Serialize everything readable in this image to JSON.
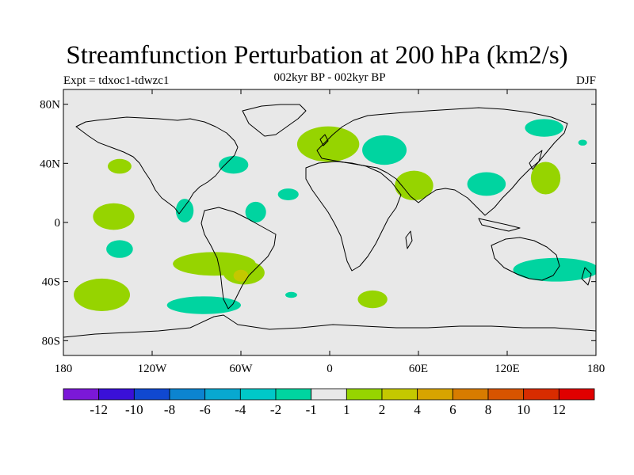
{
  "chart_data": {
    "type": "heatmap",
    "title": "Streamfunction Perturbation at 200 hPa (km2/s)",
    "subtitle_left": "Expt = tdxoc1-tdwzc1",
    "subtitle_center": "002kyr BP - 002kyr BP",
    "subtitle_right": "DJF",
    "xlim": [
      -180,
      180
    ],
    "ylim": [
      -90,
      90
    ],
    "x_ticks": [
      {
        "value": -180,
        "label": "180"
      },
      {
        "value": -120,
        "label": "120W"
      },
      {
        "value": -60,
        "label": "60W"
      },
      {
        "value": 0,
        "label": "0"
      },
      {
        "value": 60,
        "label": "60E"
      },
      {
        "value": 120,
        "label": "120E"
      },
      {
        "value": 180,
        "label": "180"
      }
    ],
    "y_ticks": [
      {
        "value": 80,
        "label": "80N"
      },
      {
        "value": 40,
        "label": "40N"
      },
      {
        "value": 0,
        "label": "0"
      },
      {
        "value": -40,
        "label": "40S"
      },
      {
        "value": -80,
        "label": "80S"
      }
    ],
    "background_color": "#e8e8e8",
    "colorbar": {
      "colors": [
        "#7b18d8",
        "#3a10d8",
        "#1048d0",
        "#0c84d0",
        "#08a8d0",
        "#00c8c8",
        "#00d4a0",
        "#e8e8e8",
        "#96d400",
        "#c4c800",
        "#d8a400",
        "#d87c00",
        "#d85400",
        "#d82c00",
        "#e00000"
      ],
      "labels": [
        "-12",
        "-10",
        "-8",
        "-6",
        "-4",
        "-2",
        "-1",
        "1",
        "2",
        "4",
        "6",
        "8",
        "10",
        "12"
      ]
    },
    "anomalies": [
      {
        "lon": -50,
        "lat": 7,
        "rlon": 7,
        "rlat": 7,
        "level": "-1",
        "color": "#00d4a0"
      },
      {
        "lon": -98,
        "lat": 8,
        "rlon": 6,
        "rlat": 8,
        "level": "-1",
        "color": "#00d4a0"
      },
      {
        "lon": -65,
        "lat": 39,
        "rlon": 10,
        "rlat": 6,
        "level": "-1",
        "color": "#00d4a0"
      },
      {
        "lon": -28,
        "lat": 19,
        "rlon": 7,
        "rlat": 4,
        "level": "-1",
        "color": "#00d4a0"
      },
      {
        "lon": -142,
        "lat": -18,
        "rlon": 9,
        "rlat": 6,
        "level": "-1",
        "color": "#00d4a0"
      },
      {
        "lon": -85,
        "lat": -56,
        "rlon": 25,
        "rlat": 6,
        "level": "-1",
        "color": "#00d4a0"
      },
      {
        "lon": -26,
        "lat": -49,
        "rlon": 4,
        "rlat": 2,
        "level": "-1",
        "color": "#00d4a0"
      },
      {
        "lon": 37,
        "lat": 49,
        "rlon": 15,
        "rlat": 10,
        "level": "-1",
        "color": "#00d4a0"
      },
      {
        "lon": 106,
        "lat": 26,
        "rlon": 13,
        "rlat": 8,
        "level": "-1",
        "color": "#00d4a0"
      },
      {
        "lon": 145,
        "lat": 64,
        "rlon": 13,
        "rlat": 6,
        "level": "-1",
        "color": "#00d4a0"
      },
      {
        "lon": 171,
        "lat": 54,
        "rlon": 3,
        "rlat": 2,
        "level": "-1",
        "color": "#00d4a0"
      },
      {
        "lon": 153,
        "lat": -32,
        "rlon": 29,
        "rlat": 8,
        "level": "-1",
        "color": "#00d4a0"
      },
      {
        "lon": -142,
        "lat": 38,
        "rlon": 8,
        "rlat": 5,
        "level": "1",
        "color": "#96d400"
      },
      {
        "lon": -146,
        "lat": 4,
        "rlon": 14,
        "rlat": 9,
        "level": "1",
        "color": "#96d400"
      },
      {
        "lon": -154,
        "lat": -49,
        "rlon": 19,
        "rlat": 11,
        "level": "1",
        "color": "#96d400"
      },
      {
        "lon": -78,
        "lat": -28,
        "rlon": 28,
        "rlat": 8,
        "level": "1",
        "color": "#96d400"
      },
      {
        "lon": -58,
        "lat": -34,
        "rlon": 14,
        "rlat": 8,
        "level": "1",
        "color": "#96d400"
      },
      {
        "lon": -1,
        "lat": 53,
        "rlon": 21,
        "rlat": 12,
        "level": "1",
        "color": "#96d400"
      },
      {
        "lon": 57,
        "lat": 25,
        "rlon": 13,
        "rlat": 10,
        "level": "1",
        "color": "#96d400"
      },
      {
        "lon": 146,
        "lat": 30,
        "rlon": 10,
        "rlat": 11,
        "level": "1",
        "color": "#96d400"
      },
      {
        "lon": 29,
        "lat": -52,
        "rlon": 10,
        "rlat": 6,
        "level": "1",
        "color": "#96d400"
      },
      {
        "lon": -60,
        "lat": -36,
        "rlon": 5,
        "rlat": 4,
        "level": "2",
        "color": "#c4c800"
      }
    ]
  }
}
